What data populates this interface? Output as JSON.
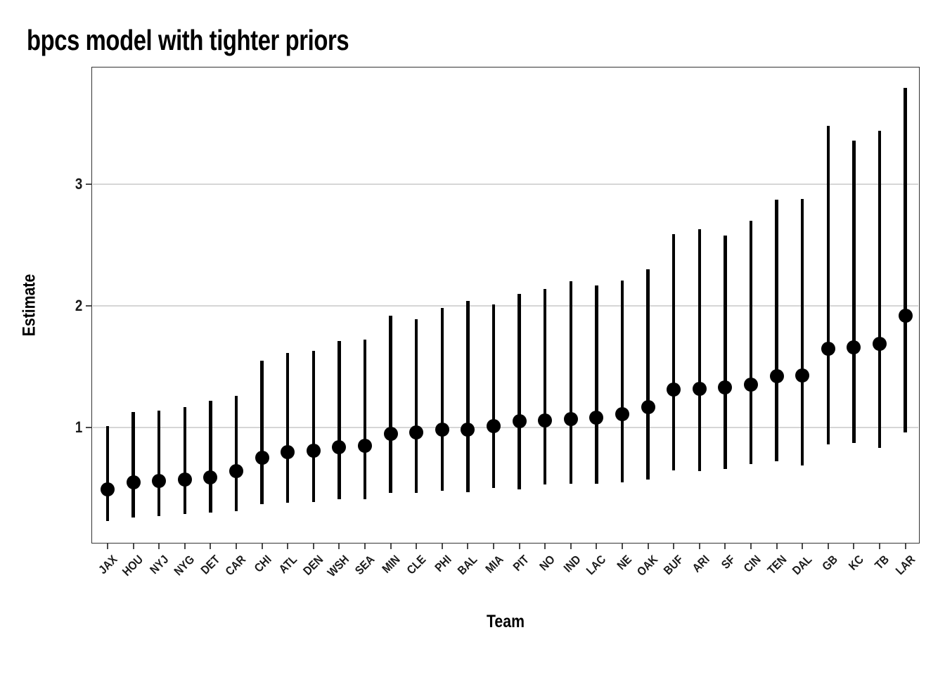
{
  "chart_data": {
    "type": "scatter",
    "subtype": "pointrange-with-error-bars",
    "title": "bpcs model with tighter priors",
    "xlabel": "Team",
    "ylabel": "Estimate",
    "yticks": [
      1,
      2,
      3
    ],
    "ylim": [
      0.05,
      3.96
    ],
    "grid": "horizontal-major-only",
    "legend": "none",
    "categories": [
      "JAX",
      "HOU",
      "NYJ",
      "NYG",
      "DET",
      "CAR",
      "CHI",
      "ATL",
      "DEN",
      "WSH",
      "SEA",
      "MIN",
      "CLE",
      "PHI",
      "BAL",
      "MIA",
      "PIT",
      "NO",
      "IND",
      "LAC",
      "NE",
      "OAK",
      "BUF",
      "ARI",
      "SF",
      "CIN",
      "TEN",
      "DAL",
      "GB",
      "KC",
      "TB",
      "LAR"
    ],
    "series": [
      {
        "name": "estimate",
        "values": [
          0.49,
          0.55,
          0.56,
          0.57,
          0.59,
          0.64,
          0.75,
          0.8,
          0.81,
          0.84,
          0.85,
          0.95,
          0.96,
          0.98,
          0.98,
          1.01,
          1.05,
          1.06,
          1.07,
          1.08,
          1.11,
          1.17,
          1.31,
          1.32,
          1.33,
          1.35,
          1.42,
          1.43,
          1.65,
          1.66,
          1.69,
          1.92
        ]
      },
      {
        "name": "lower",
        "values": [
          0.23,
          0.26,
          0.27,
          0.29,
          0.3,
          0.31,
          0.37,
          0.38,
          0.39,
          0.41,
          0.41,
          0.46,
          0.46,
          0.48,
          0.47,
          0.5,
          0.49,
          0.53,
          0.54,
          0.54,
          0.55,
          0.57,
          0.65,
          0.64,
          0.66,
          0.7,
          0.72,
          0.69,
          0.86,
          0.87,
          0.83,
          0.96
        ]
      },
      {
        "name": "upper",
        "values": [
          1.01,
          1.13,
          1.14,
          1.17,
          1.22,
          1.26,
          1.55,
          1.61,
          1.63,
          1.71,
          1.72,
          1.92,
          1.89,
          1.98,
          2.04,
          2.01,
          2.1,
          2.14,
          2.2,
          2.17,
          2.21,
          2.3,
          2.59,
          2.63,
          2.58,
          2.7,
          2.87,
          2.88,
          3.48,
          3.36,
          3.44,
          3.79
        ]
      }
    ],
    "colors": {
      "point": "#000000",
      "bar": "#000000",
      "gridline": "#d6d6d6",
      "panel_border": "#333333",
      "tick": "#4a4a4a",
      "text": "#000000",
      "background": "#ffffff"
    }
  }
}
